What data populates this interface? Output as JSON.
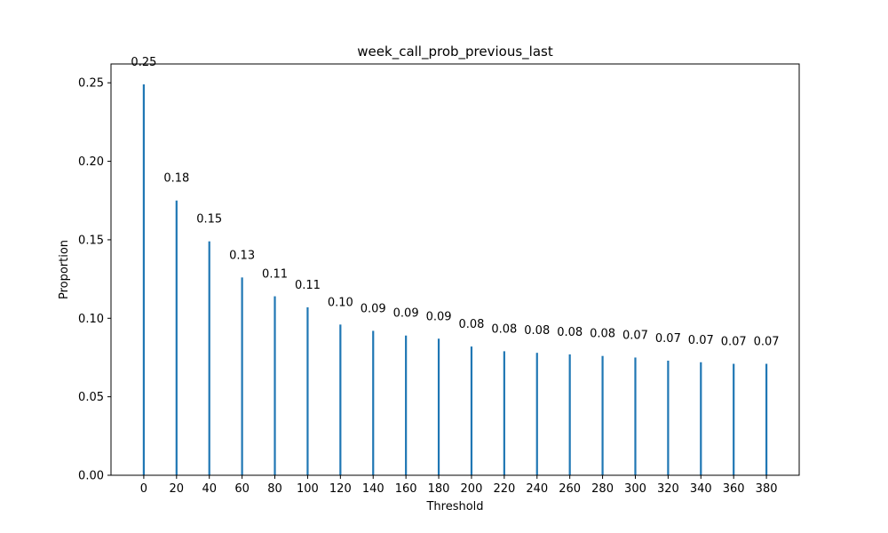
{
  "chart_data": {
    "type": "bar",
    "title": "week_call_prob_previous_last",
    "xlabel": "Threshold",
    "ylabel": "Proportion",
    "x": [
      0,
      20,
      40,
      60,
      80,
      100,
      120,
      140,
      160,
      180,
      200,
      220,
      240,
      260,
      280,
      300,
      320,
      340,
      360,
      380
    ],
    "values": [
      0.249,
      0.175,
      0.149,
      0.126,
      0.114,
      0.107,
      0.096,
      0.092,
      0.089,
      0.087,
      0.082,
      0.079,
      0.078,
      0.077,
      0.076,
      0.075,
      0.073,
      0.072,
      0.071,
      0.071
    ],
    "data_labels": [
      "0.25",
      "0.18",
      "0.15",
      "0.13",
      "0.11",
      "0.11",
      "0.10",
      "0.09",
      "0.09",
      "0.09",
      "0.08",
      "0.08",
      "0.08",
      "0.08",
      "0.08",
      "0.07",
      "0.07",
      "0.07",
      "0.07",
      "0.07"
    ],
    "xticks": [
      "0",
      "20",
      "40",
      "60",
      "80",
      "100",
      "120",
      "140",
      "160",
      "180",
      "200",
      "220",
      "240",
      "260",
      "280",
      "300",
      "320",
      "340",
      "360",
      "380"
    ],
    "yticks": [
      0.0,
      0.05,
      0.1,
      0.15,
      0.2,
      0.25
    ],
    "ytick_labels": [
      "0.00",
      "0.05",
      "0.10",
      "0.15",
      "0.20",
      "0.25"
    ],
    "xlim": [
      -20,
      400
    ],
    "ylim": [
      0,
      0.262
    ],
    "grid": false,
    "bar_color": "#1f77b4"
  }
}
